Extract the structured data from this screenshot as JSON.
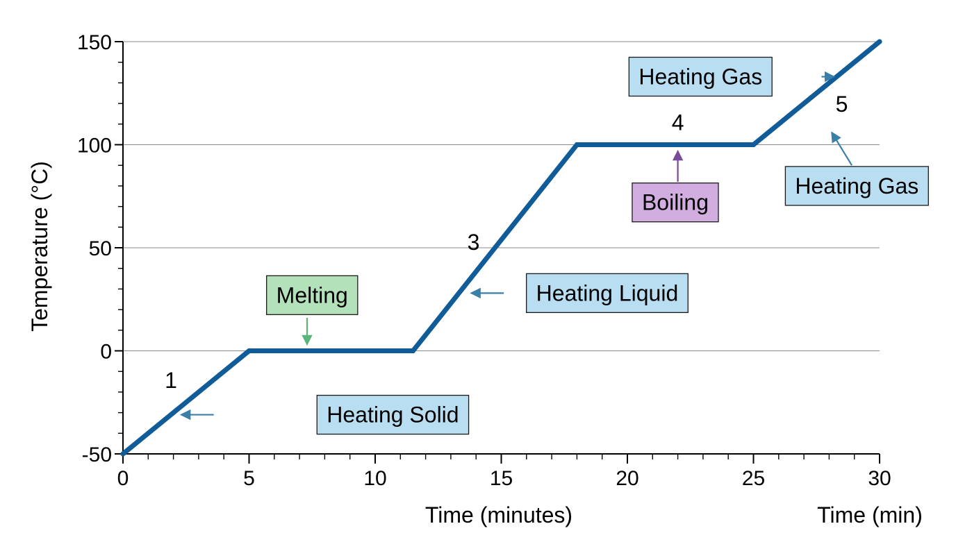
{
  "chart_data": {
    "type": "line",
    "title": "",
    "xlabel": "Time (minutes)",
    "xlabel_secondary": "Time (min)",
    "ylabel": "Temperature (°C)",
    "xlim": [
      0,
      30
    ],
    "ylim": [
      -50,
      150
    ],
    "x_ticks": [
      0,
      5,
      10,
      15,
      20,
      25,
      30
    ],
    "x_minor_step": 1,
    "y_ticks": [
      -50,
      0,
      50,
      100,
      150
    ],
    "y_minor_step": 10,
    "grid": "horizontal at major y ticks",
    "legend": "none",
    "series": [
      {
        "color": "#0f5c99",
        "x": [
          0,
          5,
          11.5,
          18,
          25,
          30
        ],
        "y": [
          -50,
          0,
          0,
          100,
          100,
          150
        ]
      }
    ],
    "segment_numbers": [
      {
        "text": "1",
        "x": 1.9,
        "y": -18
      },
      {
        "text": "3",
        "x": 13.9,
        "y": 49
      },
      {
        "text": "4",
        "x": 22,
        "y": 107
      },
      {
        "text": "5",
        "x": 28.5,
        "y": 116
      }
    ],
    "annotations": [
      {
        "text": "Heating Solid",
        "box_color": "#b9def2",
        "arrow_color": "#3a7fa8",
        "box_x": 10.7,
        "box_y": -31,
        "arrow_from": [
          3.6,
          -31
        ],
        "arrow_to": [
          2.3,
          -31
        ]
      },
      {
        "text": "Melting",
        "box_color": "#b3e2ba",
        "arrow_color": "#5bb57a",
        "box_x": 7.5,
        "box_y": 27,
        "arrow_from": [
          7.3,
          16
        ],
        "arrow_to": [
          7.3,
          3
        ]
      },
      {
        "text": "Heating Liquid",
        "box_color": "#b9def2",
        "arrow_color": "#3a7fa8",
        "box_x": 19.2,
        "box_y": 28,
        "arrow_from": [
          15.1,
          28
        ],
        "arrow_to": [
          13.8,
          28
        ]
      },
      {
        "text": "Boiling",
        "box_color": "#d2aee0",
        "arrow_color": "#7a4a9a",
        "box_x": 21.9,
        "box_y": 72,
        "arrow_from": [
          22,
          82
        ],
        "arrow_to": [
          22,
          97
        ]
      },
      {
        "text": "Heating Gas",
        "box_color": "#b9def2",
        "arrow_color": "#3a7fa8",
        "box_x": 22.9,
        "box_y": 133,
        "arrow_from": [
          27.7,
          133
        ],
        "arrow_to": [
          28.2,
          133
        ]
      },
      {
        "text": "Heating Gas",
        "box_color": "#b9def2",
        "arrow_color": "#3a7fa8",
        "box_x": 29.1,
        "box_y": 80,
        "arrow_from": [
          28.9,
          90
        ],
        "arrow_to": [
          28.1,
          106
        ]
      }
    ]
  }
}
